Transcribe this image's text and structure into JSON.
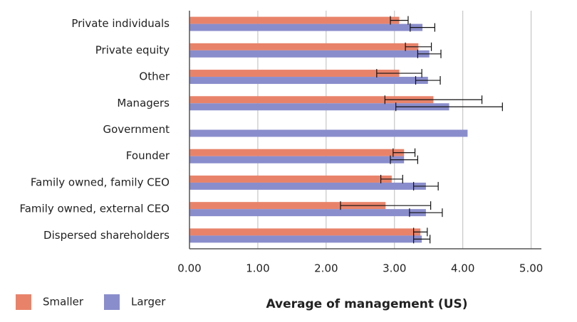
{
  "chart_data": {
    "type": "bar",
    "orientation": "horizontal",
    "x_label": "Average of management (US)",
    "categories": [
      "Private individuals",
      "Private equity",
      "Other",
      "Managers",
      "Government",
      "Founder",
      "Family owned, family CEO",
      "Family owned, external CEO",
      "Dispersed shareholders"
    ],
    "series": [
      {
        "name": "Smaller",
        "color": "#e8836a",
        "values": [
          3.07,
          3.35,
          3.07,
          3.57,
          null,
          3.14,
          2.96,
          2.87,
          3.38
        ],
        "errors": [
          0.13,
          0.19,
          0.33,
          0.71,
          null,
          0.16,
          0.16,
          0.66,
          0.1
        ]
      },
      {
        "name": "Larger",
        "color": "#8a8dcc",
        "values": [
          3.41,
          3.51,
          3.49,
          3.8,
          4.07,
          3.14,
          3.46,
          3.46,
          3.4
        ],
        "errors": [
          0.18,
          0.17,
          0.18,
          0.78,
          null,
          0.2,
          0.18,
          0.24,
          0.12
        ]
      }
    ],
    "xlim": [
      0,
      5.15
    ],
    "xticks": [
      {
        "value": 0,
        "label": "0.00"
      },
      {
        "value": 1,
        "label": "1.00"
      },
      {
        "value": 2,
        "label": "2.00"
      },
      {
        "value": 3,
        "label": "3.00"
      },
      {
        "value": 4,
        "label": "4.00"
      },
      {
        "value": 5,
        "label": "5.00"
      }
    ],
    "grid": true
  }
}
